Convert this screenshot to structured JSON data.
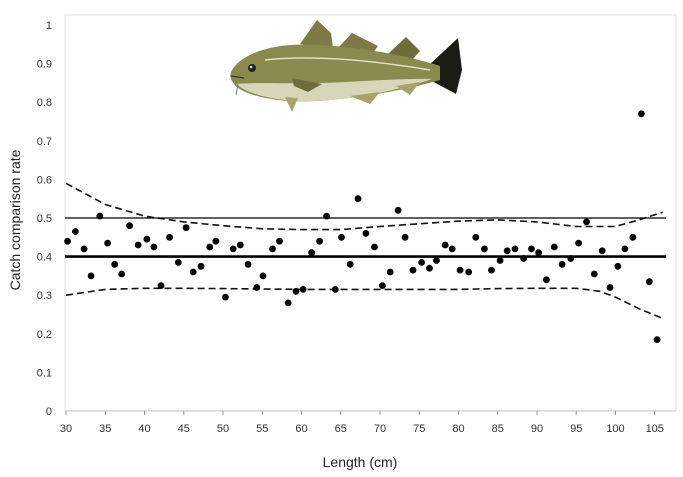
{
  "chart_data": {
    "type": "scatter",
    "xlabel": "Length (cm)",
    "ylabel": "Catch comparison rate",
    "xlim": [
      30,
      106
    ],
    "ylim": [
      0,
      1
    ],
    "x_ticks": [
      30,
      35,
      40,
      45,
      50,
      55,
      60,
      65,
      70,
      75,
      80,
      85,
      90,
      95,
      100,
      105
    ],
    "y_ticks": [
      0,
      0.1,
      0.2,
      0.3,
      0.4,
      0.5,
      0.6,
      0.7,
      0.8,
      0.9,
      1
    ],
    "grid": false,
    "image": "cod-fish",
    "points": [
      [
        30.2,
        0.44
      ],
      [
        31.2,
        0.465
      ],
      [
        32.3,
        0.42
      ],
      [
        33.2,
        0.35
      ],
      [
        34.3,
        0.505
      ],
      [
        35.3,
        0.435
      ],
      [
        36.2,
        0.38
      ],
      [
        37.1,
        0.355
      ],
      [
        38.1,
        0.48
      ],
      [
        39.2,
        0.43
      ],
      [
        40.3,
        0.445
      ],
      [
        41.2,
        0.425
      ],
      [
        42.1,
        0.325
      ],
      [
        43.2,
        0.45
      ],
      [
        44.3,
        0.385
      ],
      [
        45.3,
        0.475
      ],
      [
        46.2,
        0.36
      ],
      [
        47.2,
        0.375
      ],
      [
        48.3,
        0.425
      ],
      [
        49.1,
        0.44
      ],
      [
        50.3,
        0.295
      ],
      [
        51.3,
        0.42
      ],
      [
        52.2,
        0.43
      ],
      [
        53.2,
        0.38
      ],
      [
        54.3,
        0.32
      ],
      [
        55.1,
        0.35
      ],
      [
        56.3,
        0.42
      ],
      [
        57.2,
        0.44
      ],
      [
        58.3,
        0.28
      ],
      [
        59.3,
        0.31
      ],
      [
        60.2,
        0.315
      ],
      [
        61.3,
        0.41
      ],
      [
        62.3,
        0.44
      ],
      [
        63.2,
        0.505
      ],
      [
        64.3,
        0.315
      ],
      [
        65.1,
        0.45
      ],
      [
        66.2,
        0.38
      ],
      [
        67.2,
        0.55
      ],
      [
        68.2,
        0.46
      ],
      [
        69.3,
        0.425
      ],
      [
        70.3,
        0.325
      ],
      [
        71.3,
        0.36
      ],
      [
        72.3,
        0.52
      ],
      [
        73.2,
        0.45
      ],
      [
        74.2,
        0.365
      ],
      [
        75.3,
        0.385
      ],
      [
        76.3,
        0.37
      ],
      [
        77.2,
        0.39
      ],
      [
        78.3,
        0.43
      ],
      [
        79.2,
        0.42
      ],
      [
        80.2,
        0.365
      ],
      [
        81.3,
        0.36
      ],
      [
        82.2,
        0.45
      ],
      [
        83.3,
        0.42
      ],
      [
        84.2,
        0.365
      ],
      [
        85.3,
        0.39
      ],
      [
        86.2,
        0.415
      ],
      [
        87.2,
        0.42
      ],
      [
        88.3,
        0.395
      ],
      [
        89.3,
        0.42
      ],
      [
        90.2,
        0.41
      ],
      [
        91.2,
        0.34
      ],
      [
        92.2,
        0.425
      ],
      [
        93.2,
        0.38
      ],
      [
        94.3,
        0.395
      ],
      [
        95.3,
        0.435
      ],
      [
        96.3,
        0.49
      ],
      [
        97.3,
        0.355
      ],
      [
        98.3,
        0.415
      ],
      [
        99.3,
        0.32
      ],
      [
        100.3,
        0.375
      ],
      [
        101.2,
        0.42
      ],
      [
        102.2,
        0.45
      ],
      [
        103.3,
        0.77
      ],
      [
        104.3,
        0.335
      ],
      [
        105.3,
        0.185
      ]
    ],
    "reference_lines": [
      {
        "y": 0.5,
        "style": "solid-thin"
      },
      {
        "y": 0.4,
        "style": "solid-thick"
      }
    ],
    "confidence_band": {
      "style": "dashed",
      "upper": [
        [
          30,
          0.59
        ],
        [
          35,
          0.535
        ],
        [
          40,
          0.505
        ],
        [
          45,
          0.49
        ],
        [
          50,
          0.48
        ],
        [
          55,
          0.472
        ],
        [
          60,
          0.47
        ],
        [
          65,
          0.47
        ],
        [
          70,
          0.478
        ],
        [
          75,
          0.485
        ],
        [
          80,
          0.492
        ],
        [
          85,
          0.495
        ],
        [
          90,
          0.49
        ],
        [
          95,
          0.478
        ],
        [
          100,
          0.478
        ],
        [
          103,
          0.495
        ],
        [
          106,
          0.515
        ]
      ],
      "lower": [
        [
          30,
          0.3
        ],
        [
          35,
          0.315
        ],
        [
          40,
          0.318
        ],
        [
          45,
          0.318
        ],
        [
          50,
          0.317
        ],
        [
          55,
          0.316
        ],
        [
          60,
          0.315
        ],
        [
          65,
          0.315
        ],
        [
          70,
          0.315
        ],
        [
          75,
          0.315
        ],
        [
          80,
          0.315
        ],
        [
          85,
          0.317
        ],
        [
          90,
          0.318
        ],
        [
          95,
          0.318
        ],
        [
          98,
          0.31
        ],
        [
          100,
          0.295
        ],
        [
          103,
          0.265
        ],
        [
          106,
          0.24
        ]
      ]
    }
  }
}
